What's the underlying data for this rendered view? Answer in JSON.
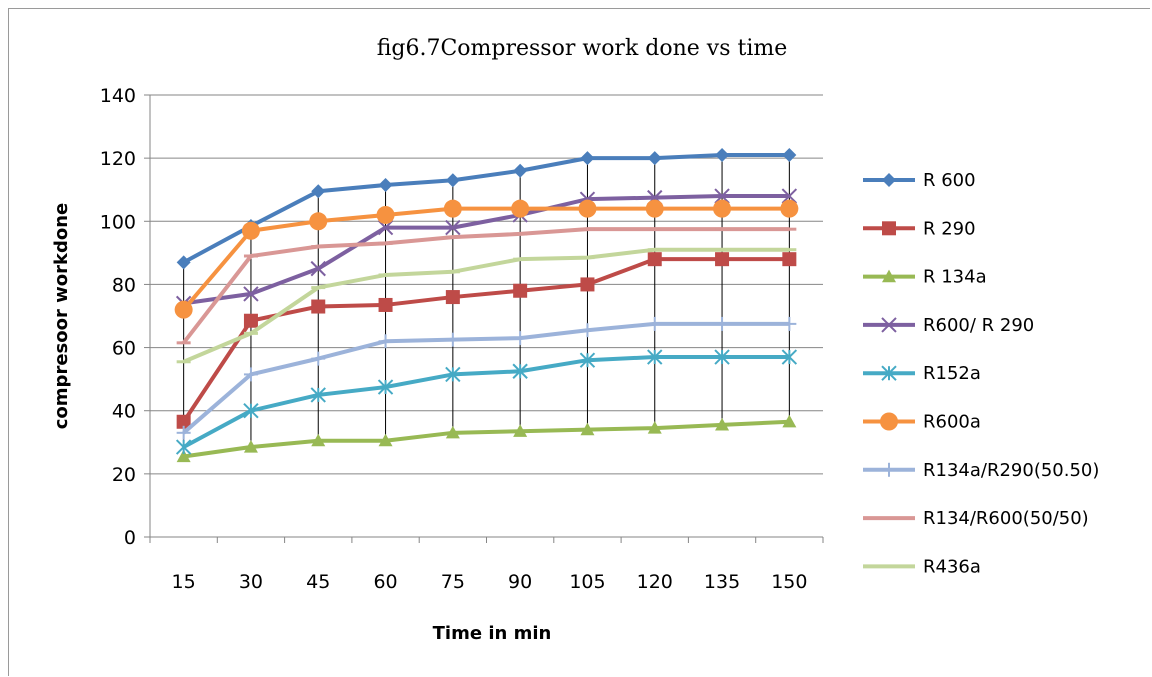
{
  "chart_data": {
    "type": "line",
    "title": "fig6.7Compressor  work done vs time",
    "xlabel": "Time in min",
    "ylabel": "compresoor workdone",
    "x": [
      15,
      30,
      45,
      60,
      75,
      90,
      105,
      120,
      135,
      150
    ],
    "categories": [
      "15",
      "30",
      "45",
      "60",
      "75",
      "90",
      "105",
      "120",
      "135",
      "150"
    ],
    "ylim": [
      0,
      140
    ],
    "yticks": [
      0,
      20,
      40,
      60,
      80,
      100,
      120,
      140
    ],
    "grid": "horizontal",
    "legend_position": "right",
    "series": [
      {
        "name": "R 600",
        "color": "#4a7ebb",
        "marker": "diamond",
        "values": [
          87,
          98.5,
          109.5,
          111.5,
          113,
          116,
          120,
          120,
          121,
          121
        ]
      },
      {
        "name": "R 290",
        "color": "#be4b48",
        "marker": "square",
        "values": [
          36.5,
          68.5,
          73,
          73.5,
          76,
          78,
          80,
          88,
          88,
          88
        ]
      },
      {
        "name": "R 134a",
        "color": "#98b954",
        "marker": "triangle",
        "values": [
          25.5,
          28.5,
          30.5,
          30.5,
          33,
          33.5,
          34,
          34.5,
          35.5,
          36.5
        ]
      },
      {
        "name": "R600/ R 290",
        "color": "#7d60a0",
        "marker": "x",
        "values": [
          74,
          77,
          85,
          98,
          98,
          102,
          107,
          107.5,
          108,
          108
        ]
      },
      {
        "name": "R152a",
        "color": "#46aac5",
        "marker": "asterisk",
        "values": [
          28.5,
          40,
          45,
          47.5,
          51.5,
          52.5,
          56,
          57,
          57,
          57
        ]
      },
      {
        "name": "R600a",
        "color": "#f69240",
        "marker": "circle",
        "values": [
          72,
          97,
          100,
          102,
          104,
          104,
          104,
          104,
          104,
          104
        ]
      },
      {
        "name": "R134a/R290(50.50)",
        "color": "#9cb3da",
        "marker": "plus",
        "values": [
          33,
          51.5,
          56.5,
          62,
          62.5,
          63,
          65.5,
          67.5,
          67.5,
          67.5
        ]
      },
      {
        "name": "R134/R600(50/50)",
        "color": "#d99795",
        "marker": "dash",
        "values": [
          61.5,
          89,
          92,
          93,
          95,
          96,
          97.5,
          97.5,
          97.5,
          97.5
        ]
      },
      {
        "name": "R436a",
        "color": "#c3d69b",
        "marker": "dash",
        "values": [
          55.5,
          64.5,
          79,
          83,
          84,
          88,
          88.5,
          91,
          91,
          91
        ]
      }
    ]
  }
}
